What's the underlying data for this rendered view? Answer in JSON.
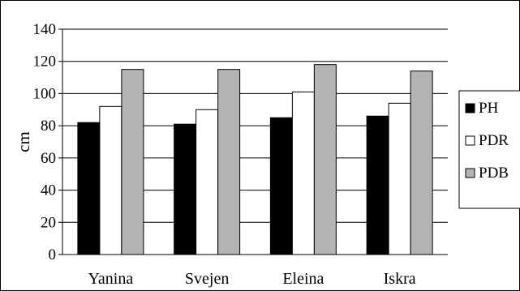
{
  "chart_data": {
    "type": "bar",
    "title": "",
    "xlabel": "",
    "ylabel": "cm",
    "ylim": [
      0,
      140
    ],
    "yticks": [
      0,
      20,
      40,
      60,
      80,
      100,
      120,
      140
    ],
    "grid": true,
    "legend_position": "right",
    "categories": [
      "Yanina",
      "Svejen",
      "Eleina",
      "Iskra"
    ],
    "series": [
      {
        "name": "PH",
        "values": [
          82,
          81,
          85,
          86
        ],
        "color": "#000000"
      },
      {
        "name": "PDR",
        "values": [
          92,
          90,
          101,
          94
        ],
        "color": "#ffffff"
      },
      {
        "name": "PDB",
        "values": [
          115,
          115,
          118,
          114
        ],
        "color": "#b3b3b3"
      }
    ]
  }
}
